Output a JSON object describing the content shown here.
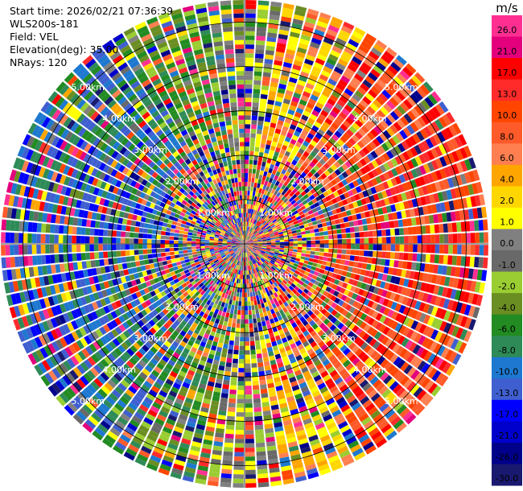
{
  "info": {
    "start_time": "Start time: 2026/02/21 07:36:39",
    "device": "WLS200s-181",
    "field": "Field: VEL",
    "elevation": "Elevation(deg): 35.00",
    "nrays": "NRays: 120"
  },
  "chart_data": {
    "type": "heatmap",
    "projection": "polar-ppi",
    "field": "VEL",
    "nrays": 120,
    "range_rings_km": [
      {
        "label": "1.00km",
        "value": 1
      },
      {
        "label": "2.00km",
        "value": 2
      },
      {
        "label": "3.00km",
        "value": 3
      },
      {
        "label": "4.00km",
        "value": 4
      },
      {
        "label": "5.00km",
        "value": 5
      }
    ],
    "colorbar": {
      "unit": "m/s",
      "ticks": [
        "26.0",
        "21.0",
        "17.0",
        "13.0",
        "10.0",
        "8.0",
        "6.0",
        "4.0",
        "2.0",
        "1.0",
        "0.0",
        "-1.0",
        "-2.0",
        "-4.0",
        "-6.0",
        "-8.0",
        "-10.0",
        "-13.0",
        "-17.0",
        "-21.0",
        "-26.0",
        "-30.0"
      ],
      "colors": [
        "#ff2f92",
        "#e4007c",
        "#ff0000",
        "#ff2b2b",
        "#ff4500",
        "#ff5a2a",
        "#ff7f50",
        "#ffa500",
        "#ffd700",
        "#ffff00",
        "#808080",
        "#696969",
        "#9acd32",
        "#6b8e23",
        "#228b22",
        "#2e8b57",
        "#1e78d0",
        "#3f5fd0",
        "#0000ff",
        "#0000cd",
        "#00008b",
        "#191970"
      ]
    },
    "pattern_note": "positive (red/orange/yellow) velocities on the right side, negative (blue/green) on the left side; noisy multicolor near center"
  }
}
